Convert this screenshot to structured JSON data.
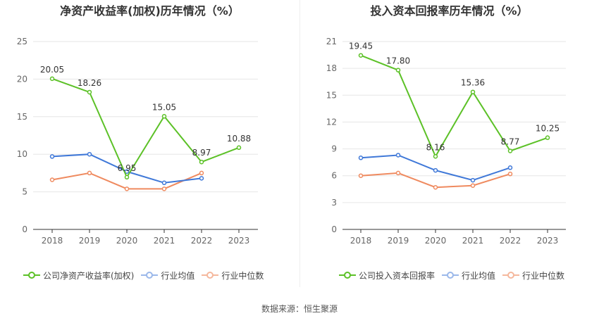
{
  "source": "数据来源：恒生聚源",
  "colors": {
    "company": "#5cc127",
    "avg": "#3f78d8",
    "median": "#ef8a5f",
    "grid": "#e6e6e6",
    "axis": "#333333",
    "tick": "#666666"
  },
  "legend_labels": {
    "left": [
      "公司净资产收益率(加权)",
      "行业均值",
      "行业中位数"
    ],
    "right": [
      "公司投入资本回报率",
      "行业均值",
      "行业中位数"
    ]
  },
  "chart_data": [
    {
      "type": "line",
      "title": "净资产收益率(加权)历年情况（%）",
      "categories": [
        "2018",
        "2019",
        "2020",
        "2021",
        "2022",
        "2023"
      ],
      "ylim": [
        0,
        25
      ],
      "yticks": [
        0,
        5,
        10,
        15,
        20,
        25
      ],
      "grid": true,
      "legend_position": "bottom",
      "series": [
        {
          "name": "公司净资产收益率(加权)",
          "values": [
            20.05,
            18.26,
            6.95,
            15.05,
            8.97,
            10.88
          ],
          "labels": [
            "20.05",
            "18.26",
            "6.95",
            "15.05",
            "8.97",
            "10.88"
          ]
        },
        {
          "name": "行业均值",
          "values": [
            9.7,
            10.0,
            7.7,
            6.2,
            6.8,
            null
          ]
        },
        {
          "name": "行业中位数",
          "values": [
            6.6,
            7.5,
            5.4,
            5.4,
            7.5,
            null
          ]
        }
      ]
    },
    {
      "type": "line",
      "title": "投入资本回报率历年情况（%）",
      "categories": [
        "2018",
        "2019",
        "2020",
        "2021",
        "2022",
        "2023"
      ],
      "ylim": [
        0,
        21
      ],
      "yticks": [
        0,
        3,
        6,
        9,
        12,
        15,
        18,
        21
      ],
      "grid": true,
      "legend_position": "bottom",
      "series": [
        {
          "name": "公司投入资本回报率",
          "values": [
            19.45,
            17.8,
            8.16,
            15.36,
            8.77,
            10.25
          ],
          "labels": [
            "19.45",
            "17.80",
            "8.16",
            "15.36",
            "8.77",
            "10.25"
          ]
        },
        {
          "name": "行业均值",
          "values": [
            8.0,
            8.3,
            6.6,
            5.5,
            6.9,
            null
          ]
        },
        {
          "name": "行业中位数",
          "values": [
            6.0,
            6.3,
            4.7,
            4.9,
            6.2,
            null
          ]
        }
      ]
    }
  ]
}
